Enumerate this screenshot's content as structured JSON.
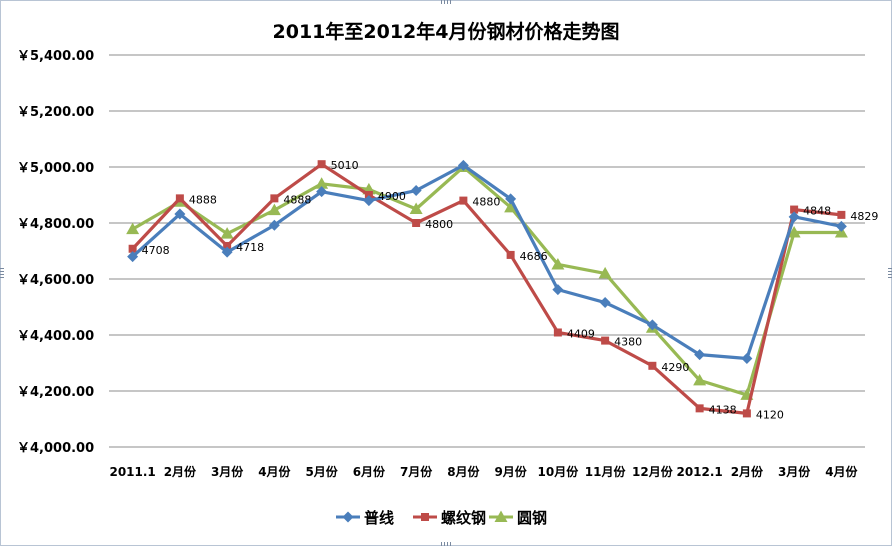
{
  "chart_data": {
    "type": "line",
    "title": "2011年至2012年4月份钢材价格走势图",
    "xlabel": "",
    "ylabel": "",
    "categories": [
      "2011.1",
      "2月份",
      "3月份",
      "4月份",
      "5月份",
      "6月份",
      "7月份",
      "8月份",
      "9月份",
      "10月份",
      "11月份",
      "12月份",
      "2012.1",
      "2月份",
      "3月份",
      "4月份"
    ],
    "ylim": [
      4000,
      5400
    ],
    "yticks": [
      4000,
      4200,
      4400,
      4600,
      4800,
      5000,
      5200,
      5400
    ],
    "ytick_labels": [
      "￥4,000.00",
      "￥4,200.00",
      "￥4,400.00",
      "￥4,600.00",
      "￥4,800.00",
      "￥5,000.00",
      "￥5,200.00",
      "￥5,400.00"
    ],
    "grid": true,
    "legend": "bottom",
    "series": [
      {
        "name": "普线",
        "color": "#4a7ebb",
        "marker": "diamond",
        "values": [
          4680,
          4832,
          4696,
          4792,
          4912,
          4880,
          4916,
          5006,
          4886,
          4562,
          4516,
          4436,
          4330,
          4316,
          4822,
          4788
        ],
        "labels": [
          "",
          "",
          "",
          "",
          "",
          "",
          "",
          "",
          "",
          "",
          "",
          "",
          "",
          "",
          "",
          ""
        ]
      },
      {
        "name": "螺纹钢",
        "color": "#be4b48",
        "marker": "square",
        "values": [
          4708,
          4888,
          4718,
          4888,
          5010,
          4900,
          4800,
          4880,
          4686,
          4409,
          4380,
          4290,
          4138,
          4120,
          4848,
          4829
        ],
        "labels": [
          "4708",
          "4888",
          "4718",
          "4888",
          "5010",
          "4900",
          "4800",
          "4880",
          "4686",
          "4409",
          "4380",
          "4290",
          "4138",
          "4120",
          "4848",
          "4829"
        ]
      },
      {
        "name": "圆钢",
        "color": "#98b954",
        "marker": "triangle",
        "values": [
          4778,
          4876,
          4762,
          4846,
          4940,
          4920,
          4850,
          5000,
          4856,
          4652,
          4620,
          4426,
          4238,
          4186,
          4766,
          4766
        ],
        "labels": [
          "",
          "",
          "",
          "",
          "",
          "",
          "",
          "",
          "",
          "",
          "",
          "",
          "",
          "",
          "",
          ""
        ]
      }
    ]
  }
}
